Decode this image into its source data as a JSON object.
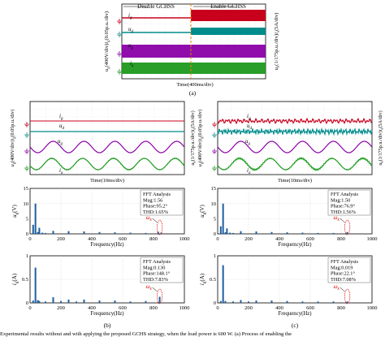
{
  "figure": {
    "top": {
      "disable_label": "Disable GCHSS",
      "enable_label": "Enable GCHSS",
      "time_label": "Time(400ms/div)",
      "left_axis": {
        "var1": "u",
        "sub1": "g",
        "mid": "(400V/div)",
        "var2": "i",
        "sub2": "g",
        "tail": "(0.05p.u./div)"
      },
      "right_axis": {
        "var1": "u",
        "sub1": "k",
        "mid": "(1/175p.u./div)",
        "var2": "i",
        "sub2": "a",
        "tail": "(5A/div)"
      },
      "traces": [
        {
          "var": "i",
          "sub": "g",
          "color": "#c8001c"
        },
        {
          "var": "u",
          "sub": "d",
          "color": "#008c8c"
        },
        {
          "var": "u",
          "sub": "g",
          "color": "#8a00a8"
        },
        {
          "var": "i",
          "sub": "a",
          "color": "#1e9a1e"
        }
      ],
      "panel_tag": "(a)"
    },
    "mid_b": {
      "time_label": "Time(10ms/div)",
      "left_axis": {
        "var1": "u",
        "sub1": "g",
        "mid": "(400V/div)",
        "var2": "i",
        "sub2": "g",
        "tail": "(0.05p.u./div)"
      },
      "right_axis": {
        "var1": "u",
        "sub1": "k",
        "mid": "(1/175p.u./div)",
        "var2": "i",
        "sub2": "a",
        "tail": "(5A/div)"
      }
    },
    "mid_c": {
      "time_label": "Time(10ms/div)",
      "left_axis": {
        "var1": "u",
        "sub1": "g",
        "mid": "(400V/div)",
        "var2": "i",
        "sub2": "g",
        "tail": "(0.05p.u./div)"
      },
      "right_axis": {
        "var1": "u",
        "sub1": "k",
        "mid": "(1/175p.u./div)",
        "var2": "i",
        "sub2": "a",
        "tail": "(5A/div)"
      }
    },
    "ffts": [
      {
        "id": "ug_b",
        "ylabel_var": "u",
        "ylabel_sub": "g",
        "ylabel_unit": "(V)",
        "yticks": [
          "0",
          "5",
          "10",
          "15"
        ],
        "ymax": 15,
        "title": "FFT Analysis",
        "mag": "Mag:1.56",
        "phase": "Phase:95.2°",
        "thd": "THD:1.65%",
        "xlabel": "Frequency(Hz)",
        "xticks": [
          "0",
          "200",
          "400",
          "600",
          "800",
          "1000"
        ],
        "omega_var": "ω",
        "omega_sub": "k",
        "bars": [
          [
            20,
            3
          ],
          [
            35,
            10
          ],
          [
            50,
            0.6
          ],
          [
            60,
            2
          ],
          [
            80,
            0.4
          ],
          [
            100,
            0.3
          ],
          [
            150,
            1.0
          ],
          [
            250,
            0.9
          ],
          [
            350,
            0.8
          ],
          [
            450,
            0.6
          ],
          [
            550,
            0.5
          ],
          [
            650,
            0.4
          ],
          [
            750,
            0.3
          ],
          [
            830,
            0.7
          ],
          [
            850,
            0.4
          ]
        ]
      },
      {
        "id": "ug_c",
        "ylabel_var": "u",
        "ylabel_sub": "g",
        "ylabel_unit": "(V)",
        "yticks": [
          "0",
          "5",
          "10",
          "15"
        ],
        "ymax": 15,
        "title": "FFT Analysis",
        "mag": "Mag:1.50",
        "phase": "Phase:76.9°",
        "thd": "THD:1.56%",
        "xlabel": "Frequency(Hz)",
        "xticks": [
          "0",
          "200",
          "400",
          "600",
          "800",
          "1000"
        ],
        "omega_var": "ω",
        "omega_sub": "k",
        "bars": [
          [
            20,
            2.5
          ],
          [
            35,
            10
          ],
          [
            50,
            0.5
          ],
          [
            60,
            1.8
          ],
          [
            80,
            0.4
          ],
          [
            100,
            0.3
          ],
          [
            150,
            0.9
          ],
          [
            250,
            0.8
          ],
          [
            350,
            0.6
          ],
          [
            450,
            0.5
          ],
          [
            550,
            0.4
          ],
          [
            650,
            0.3
          ],
          [
            750,
            0.3
          ],
          [
            840,
            0.6
          ]
        ]
      },
      {
        "id": "ig_b",
        "ylabel_var": "i",
        "ylabel_sub": "g",
        "ylabel_unit": "(A)",
        "yticks": [
          "0",
          "0.5",
          "1"
        ],
        "ymax": 1,
        "title": "FFT Analysis",
        "mag": "Mag:0.130",
        "phase": "Phase:148.1°",
        "thd": "THD:7.83%",
        "xlabel": "Frequency(Hz)",
        "xticks": [
          "0",
          "200",
          "400",
          "600",
          "800",
          "1000"
        ],
        "omega_var": "ω",
        "omega_sub": "k",
        "bars": [
          [
            20,
            0.05
          ],
          [
            35,
            0.75
          ],
          [
            50,
            0.06
          ],
          [
            60,
            0.04
          ],
          [
            100,
            0.03
          ],
          [
            150,
            0.12
          ],
          [
            200,
            0.04
          ],
          [
            250,
            0.07
          ],
          [
            300,
            0.03
          ],
          [
            350,
            0.07
          ],
          [
            450,
            0.05
          ],
          [
            550,
            0.05
          ],
          [
            650,
            0.03
          ],
          [
            750,
            0.04
          ],
          [
            840,
            0.13
          ]
        ]
      },
      {
        "id": "ig_c",
        "ylabel_var": "i",
        "ylabel_sub": "g",
        "ylabel_unit": "(A)",
        "yticks": [
          "0",
          "0.5",
          "1"
        ],
        "ymax": 1,
        "title": "FFT Analysis",
        "mag": "Mag:0.019",
        "phase": "Phase:22.1°",
        "thd": "THD:7.08%",
        "xlabel": "Frequency(Hz)",
        "xticks": [
          "0",
          "200",
          "400",
          "600",
          "800",
          "1000"
        ],
        "omega_var": "ω",
        "omega_sub": "k",
        "bars": [
          [
            20,
            0.04
          ],
          [
            35,
            0.8
          ],
          [
            50,
            0.04
          ],
          [
            100,
            0.03
          ],
          [
            150,
            0.06
          ],
          [
            200,
            0.03
          ],
          [
            250,
            0.05
          ],
          [
            350,
            0.05
          ],
          [
            450,
            0.04
          ],
          [
            550,
            0.03
          ],
          [
            650,
            0.03
          ],
          [
            750,
            0.03
          ],
          [
            840,
            0.03
          ]
        ]
      }
    ],
    "tag_b": "(b)",
    "tag_c": "(c)",
    "caption": "Experimental results without and with applying the proposed GCHS strategy, when the load power is 600 W. (a) Process of enabling the"
  }
}
